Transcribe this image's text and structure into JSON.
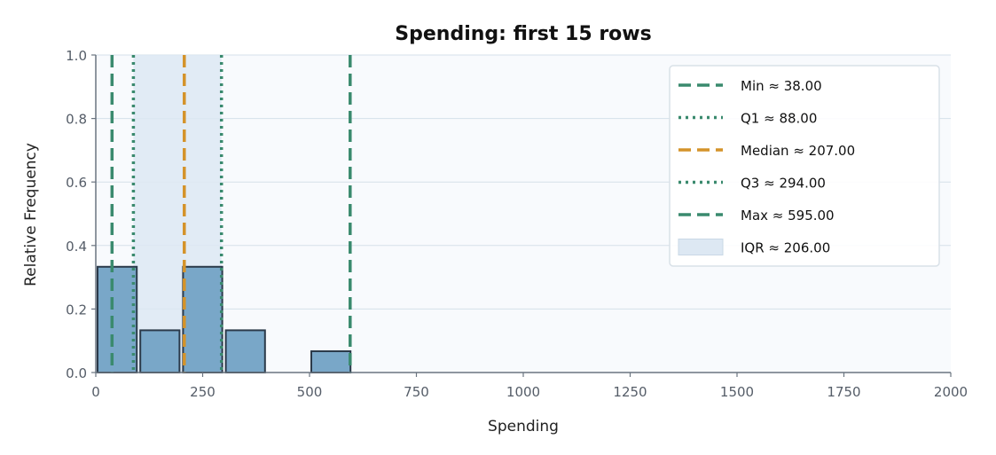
{
  "chart_data": {
    "type": "bar",
    "title": "Spending: first 15 rows",
    "xlabel": "Spending",
    "ylabel": "Relative Frequency",
    "xlim": [
      0,
      2000
    ],
    "ylim": [
      0,
      1.0
    ],
    "x_ticks": [
      0,
      250,
      500,
      750,
      1000,
      1250,
      1500,
      1750,
      2000
    ],
    "y_ticks": [
      0.0,
      0.2,
      0.4,
      0.6,
      0.8,
      1.0
    ],
    "x_tick_labels": [
      "0",
      "250",
      "500",
      "750",
      "1000",
      "1250",
      "1500",
      "1750",
      "2000"
    ],
    "y_tick_labels": [
      "0.0",
      "0.2",
      "0.4",
      "0.6",
      "0.8",
      "1.0"
    ],
    "bins": [
      {
        "start": 0,
        "end": 100,
        "value": 0.333
      },
      {
        "start": 100,
        "end": 200,
        "value": 0.133
      },
      {
        "start": 200,
        "end": 300,
        "value": 0.333
      },
      {
        "start": 300,
        "end": 400,
        "value": 0.133
      },
      {
        "start": 400,
        "end": 500,
        "value": 0.0
      },
      {
        "start": 500,
        "end": 600,
        "value": 0.067
      }
    ],
    "stats": [
      {
        "key": "min",
        "label": "Min ≈ 38.00",
        "value": 38.0,
        "style": "dashed",
        "color": "#3a8a6e"
      },
      {
        "key": "q1",
        "label": "Q1 ≈ 88.00",
        "value": 88.0,
        "style": "dotted",
        "color": "#3a8a6e"
      },
      {
        "key": "median",
        "label": "Median ≈ 207.00",
        "value": 207.0,
        "style": "dashed",
        "color": "#d4932a"
      },
      {
        "key": "q3",
        "label": "Q3 ≈ 294.00",
        "value": 294.0,
        "style": "dotted",
        "color": "#3a8a6e"
      },
      {
        "key": "max",
        "label": "Max ≈ 595.00",
        "value": 595.0,
        "style": "dashed",
        "color": "#3a8a6e"
      }
    ],
    "iqr": {
      "label": "IQR ≈ 206.00",
      "start": 88.0,
      "end": 294.0,
      "color": "#dde8f3"
    },
    "legend_position": "top-right",
    "grid": "y",
    "colors": {
      "bar_fill": "#79a7c8",
      "bar_edge": "#2b3a4a",
      "plot_bg": "#f8fafd",
      "grid": "#d5e0ea",
      "axis": "#6a7480"
    }
  }
}
